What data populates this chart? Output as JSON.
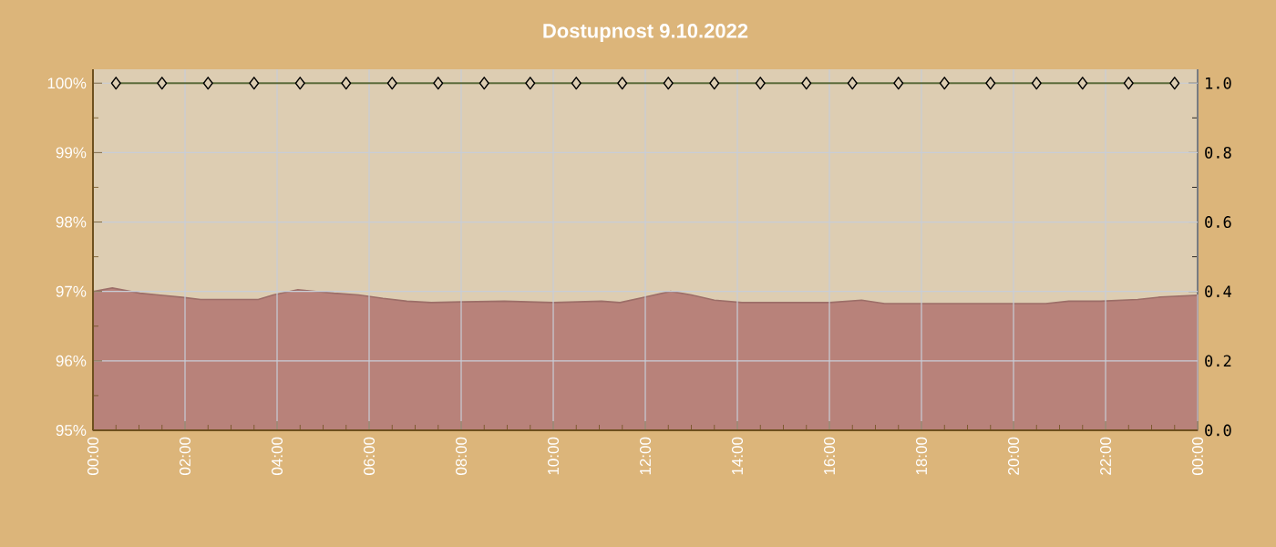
{
  "chart_data": {
    "type": "line",
    "title": "Dostupnost 9.10.2022",
    "xlim": [
      0,
      24
    ],
    "xticks": [
      {
        "value": 0,
        "label": "00:00"
      },
      {
        "value": 2,
        "label": "02:00"
      },
      {
        "value": 4,
        "label": "04:00"
      },
      {
        "value": 6,
        "label": "06:00"
      },
      {
        "value": 8,
        "label": "08:00"
      },
      {
        "value": 10,
        "label": "10:00"
      },
      {
        "value": 12,
        "label": "12:00"
      },
      {
        "value": 14,
        "label": "14:00"
      },
      {
        "value": 16,
        "label": "16:00"
      },
      {
        "value": 18,
        "label": "18:00"
      },
      {
        "value": 20,
        "label": "20:00"
      },
      {
        "value": 22,
        "label": "22:00"
      },
      {
        "value": 24,
        "label": "00:00"
      }
    ],
    "ylim": [
      95,
      100.2
    ],
    "yticks": [
      {
        "value": 95,
        "label": "95%"
      },
      {
        "value": 96,
        "label": "96%"
      },
      {
        "value": 97,
        "label": "97%"
      },
      {
        "value": 98,
        "label": "98%"
      },
      {
        "value": 99,
        "label": "99%"
      },
      {
        "value": 100,
        "label": "100%"
      }
    ],
    "y2lim": [
      0,
      1.04
    ],
    "y2ticks": [
      {
        "value": 0,
        "label": "0.0"
      },
      0.2,
      0.4,
      0.6,
      0.8,
      {
        "value": 1,
        "label": "1.0"
      }
    ],
    "grid": true,
    "series": [
      {
        "type": "area",
        "axis": "y2",
        "color": "#b8827a",
        "x": [
          0,
          0.42,
          1.02,
          1.41,
          1.94,
          2.34,
          3.59,
          3.92,
          4.45,
          4.85,
          5.24,
          5.77,
          6.3,
          6.82,
          7.35,
          8.0,
          8.94,
          10.0,
          11.05,
          11.45,
          11.96,
          12.55,
          13.0,
          13.5,
          14.1,
          16.0,
          16.7,
          17.2,
          20.7,
          21.2,
          21.9,
          22.7,
          23.2,
          24
        ],
        "values": [
          0.4,
          0.41,
          0.395,
          0.39,
          0.383,
          0.377,
          0.377,
          0.39,
          0.405,
          0.4,
          0.395,
          0.39,
          0.38,
          0.372,
          0.368,
          0.37,
          0.372,
          0.368,
          0.372,
          0.368,
          0.383,
          0.4,
          0.39,
          0.375,
          0.368,
          0.368,
          0.375,
          0.365,
          0.365,
          0.372,
          0.372,
          0.377,
          0.384,
          0.389
        ]
      },
      {
        "color": "#5c6b3a",
        "marker": "diamond",
        "x": [
          0.5,
          1.5,
          2.5,
          3.5,
          4.5,
          5.5,
          6.5,
          7.5,
          8.5,
          9.5,
          10.5,
          11.5,
          12.5,
          13.5,
          14.5,
          15.5,
          16.5,
          17.5,
          18.5,
          19.5,
          20.5,
          21.5,
          22.5,
          23.5
        ],
        "values": [
          100,
          100,
          100,
          100,
          100,
          100,
          100,
          100,
          100,
          100,
          100,
          100,
          100,
          100,
          100,
          100,
          100,
          100,
          100,
          100,
          100,
          100,
          100,
          100
        ]
      }
    ]
  }
}
